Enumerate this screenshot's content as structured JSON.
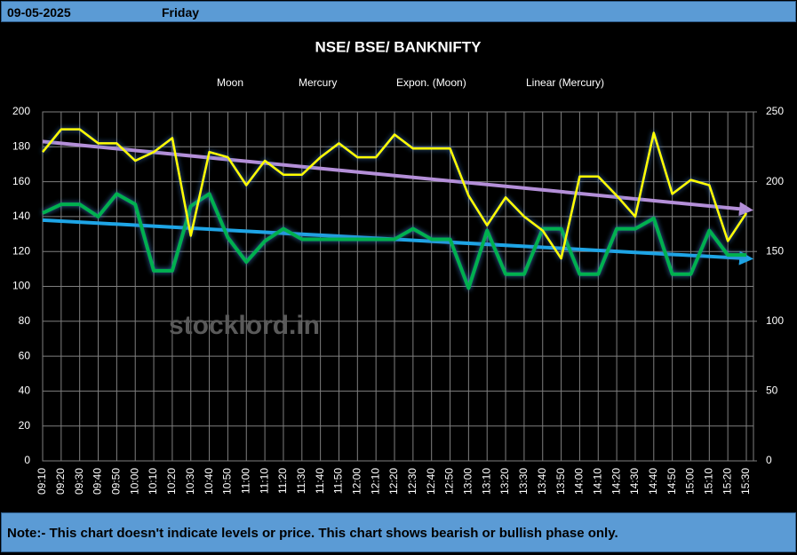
{
  "header": {
    "date": "09-05-2025",
    "day": "Friday"
  },
  "chart_data": {
    "type": "line",
    "title": "NSE/ BSE/ BANKNIFTY",
    "categories": [
      "09:10",
      "09:20",
      "09:30",
      "09:40",
      "09:50",
      "10:00",
      "10:10",
      "10:20",
      "10:30",
      "10:40",
      "10:50",
      "11:00",
      "11:10",
      "11:20",
      "11:30",
      "11:40",
      "11:50",
      "12:00",
      "12:10",
      "12:20",
      "12:30",
      "12:40",
      "12:50",
      "13:00",
      "13:10",
      "13:20",
      "13:30",
      "13:40",
      "13:50",
      "14:00",
      "14:10",
      "14:20",
      "14:30",
      "14:40",
      "14:50",
      "15:00",
      "15:10",
      "15:20",
      "15:30"
    ],
    "series": [
      {
        "name": "Moon",
        "color": "#ffff00",
        "values": [
          177,
          190,
          190,
          182,
          182,
          172,
          177,
          185,
          129,
          177,
          174,
          158,
          172,
          164,
          164,
          174,
          182,
          174,
          174,
          187,
          179,
          179,
          179,
          152,
          135,
          151,
          140,
          132,
          116,
          163,
          163,
          152,
          140,
          188,
          153,
          161,
          158,
          126,
          142
        ]
      },
      {
        "name": "Mercury",
        "color": "#00b050",
        "values": [
          142,
          147,
          147,
          140,
          153,
          147,
          109,
          109,
          146,
          153,
          128,
          114,
          126,
          133,
          127,
          127,
          127,
          127,
          127,
          127,
          133,
          127,
          127,
          99,
          132,
          107,
          107,
          133,
          133,
          107,
          107,
          133,
          133,
          139,
          107,
          107,
          132,
          118,
          118
        ]
      }
    ],
    "trendlines": [
      {
        "name": "Expon. (Moon)",
        "color": "#b48fd8",
        "values": [
          183,
          144
        ]
      },
      {
        "name": "Linear (Mercury)",
        "color": "#1ea5e6",
        "values": [
          138,
          116
        ]
      }
    ],
    "ylim": [
      0,
      200
    ],
    "yticks": [
      0,
      20,
      40,
      60,
      80,
      100,
      120,
      140,
      160,
      180,
      200
    ],
    "y2lim": [
      0,
      250
    ],
    "y2ticks": [
      0,
      50,
      100,
      150,
      200,
      250
    ],
    "grid": true,
    "watermark": "stocklord.in"
  },
  "note": "Note:- This chart doesn't indicate levels or price. This chart shows bearish or bullish phase only."
}
